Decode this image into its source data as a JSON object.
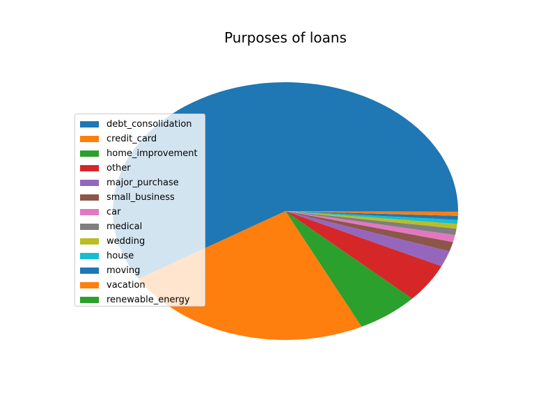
{
  "chart_data": {
    "type": "pie",
    "title": "Purposes of loans",
    "legend_position": "center-left",
    "slices": [
      {
        "label": "debt_consolidation",
        "value": 59.4,
        "color": "#1f77b4"
      },
      {
        "label": "credit_card",
        "value": 23.7,
        "color": "#ff7f0e"
      },
      {
        "label": "home_improvement",
        "value": 5.9,
        "color": "#2ca02c"
      },
      {
        "label": "other",
        "value": 4.9,
        "color": "#d62728"
      },
      {
        "label": "major_purchase",
        "value": 2.0,
        "color": "#9467bd"
      },
      {
        "label": "small_business",
        "value": 1.2,
        "color": "#8c564b"
      },
      {
        "label": "car",
        "value": 0.9,
        "color": "#e377c2"
      },
      {
        "label": "medical",
        "value": 0.8,
        "color": "#7f7f7f"
      },
      {
        "label": "wedding",
        "value": 0.6,
        "color": "#bcbd22"
      },
      {
        "label": "house",
        "value": 0.5,
        "color": "#17becf"
      },
      {
        "label": "moving",
        "value": 0.5,
        "color": "#1f77b4"
      },
      {
        "label": "vacation",
        "value": 0.5,
        "color": "#ff7f0e"
      },
      {
        "label": "renewable_energy",
        "value": 0.1,
        "color": "#2ca02c"
      }
    ]
  }
}
